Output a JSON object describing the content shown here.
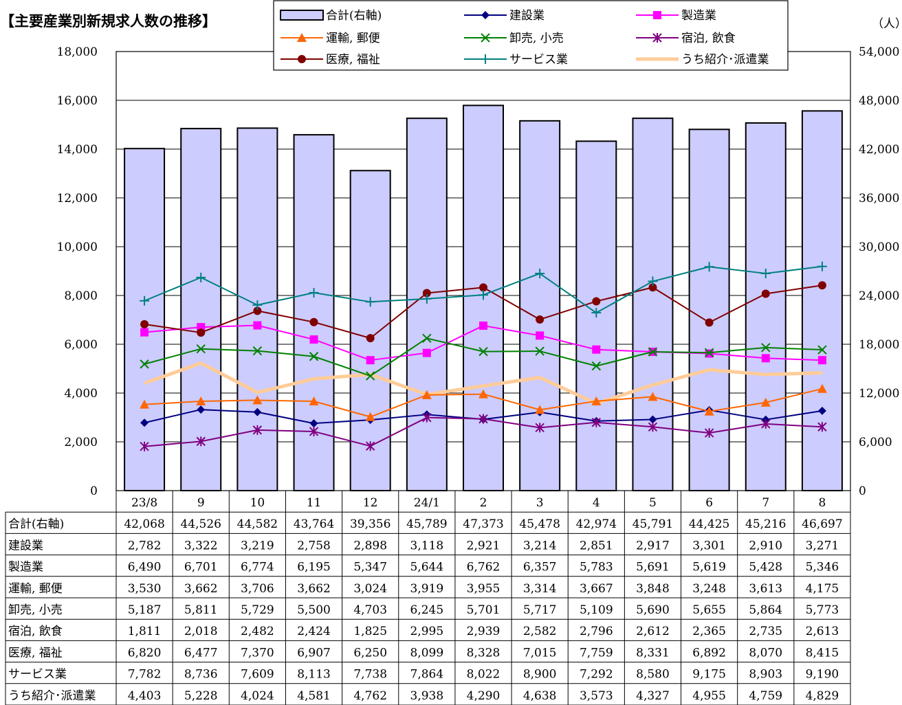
{
  "chart_data": {
    "type": "bar",
    "title": "【主要産業別新規求人数の推移】",
    "unit": "（人）",
    "categories": [
      "23/8",
      "9",
      "10",
      "11",
      "12",
      "24/1",
      "2",
      "3",
      "4",
      "5",
      "6",
      "7",
      "8"
    ],
    "left_axis": {
      "ylim": [
        0,
        18000
      ],
      "ticks": [
        "0",
        "2,000",
        "4,000",
        "6,000",
        "8,000",
        "10,000",
        "12,000",
        "14,000",
        "16,000",
        "18,000"
      ]
    },
    "right_axis": {
      "ylim": [
        0,
        54000
      ],
      "ticks": [
        "0",
        "6,000",
        "12,000",
        "18,000",
        "24,000",
        "30,000",
        "36,000",
        "42,000",
        "48,000",
        "54,000"
      ]
    },
    "bar_series": {
      "name": "合計(右軸)",
      "axis": "right",
      "color": "#ccccff",
      "values": [
        42068,
        44526,
        44582,
        43764,
        39356,
        45789,
        47373,
        45478,
        42974,
        45791,
        44425,
        45216,
        46697
      ],
      "labels": [
        "42,068",
        "44,526",
        "44,582",
        "43,764",
        "39,356",
        "45,789",
        "47,373",
        "45,478",
        "42,974",
        "45,791",
        "44,425",
        "45,216",
        "46,697"
      ]
    },
    "series": [
      {
        "name": "建設業",
        "color": "#000080",
        "marker": "diamond",
        "values": [
          2782,
          3322,
          3219,
          2758,
          2898,
          3118,
          2921,
          3214,
          2851,
          2917,
          3301,
          2910,
          3271
        ],
        "labels": [
          "2,782",
          "3,322",
          "3,219",
          "2,758",
          "2,898",
          "3,118",
          "2,921",
          "3,214",
          "2,851",
          "2,917",
          "3,301",
          "2,910",
          "3,271"
        ]
      },
      {
        "name": "製造業",
        "color": "#ff00ff",
        "marker": "square",
        "values": [
          6490,
          6701,
          6774,
          6195,
          5347,
          5644,
          6762,
          6357,
          5783,
          5691,
          5619,
          5428,
          5346
        ],
        "labels": [
          "6,490",
          "6,701",
          "6,774",
          "6,195",
          "5,347",
          "5,644",
          "6,762",
          "6,357",
          "5,783",
          "5,691",
          "5,619",
          "5,428",
          "5,346"
        ]
      },
      {
        "name": "運輸, 郵便",
        "color": "#ff6600",
        "marker": "triangle",
        "values": [
          3530,
          3662,
          3706,
          3662,
          3024,
          3919,
          3955,
          3314,
          3667,
          3848,
          3248,
          3613,
          4175
        ],
        "labels": [
          "3,530",
          "3,662",
          "3,706",
          "3,662",
          "3,024",
          "3,919",
          "3,955",
          "3,314",
          "3,667",
          "3,848",
          "3,248",
          "3,613",
          "4,175"
        ]
      },
      {
        "name": "卸売, 小売",
        "color": "#008000",
        "marker": "x",
        "values": [
          5187,
          5811,
          5729,
          5500,
          4703,
          6245,
          5701,
          5717,
          5109,
          5690,
          5655,
          5864,
          5773
        ],
        "labels": [
          "5,187",
          "5,811",
          "5,729",
          "5,500",
          "4,703",
          "6,245",
          "5,701",
          "5,717",
          "5,109",
          "5,690",
          "5,655",
          "5,864",
          "5,773"
        ]
      },
      {
        "name": "宿泊, 飲食",
        "color": "#800080",
        "marker": "star",
        "values": [
          1811,
          2018,
          2482,
          2424,
          1825,
          2995,
          2939,
          2582,
          2796,
          2612,
          2365,
          2735,
          2613
        ],
        "labels": [
          "1,811",
          "2,018",
          "2,482",
          "2,424",
          "1,825",
          "2,995",
          "2,939",
          "2,582",
          "2,796",
          "2,612",
          "2,365",
          "2,735",
          "2,613"
        ]
      },
      {
        "name": "医療, 福祉",
        "color": "#800000",
        "marker": "circle",
        "values": [
          6820,
          6477,
          7370,
          6907,
          6250,
          8099,
          8328,
          7015,
          7759,
          8331,
          6892,
          8070,
          8415
        ],
        "labels": [
          "6,820",
          "6,477",
          "7,370",
          "6,907",
          "6,250",
          "8,099",
          "8,328",
          "7,015",
          "7,759",
          "8,331",
          "6,892",
          "8,070",
          "8,415"
        ]
      },
      {
        "name": "サービス業",
        "color": "#008080",
        "marker": "plus",
        "values": [
          7782,
          8736,
          7609,
          8113,
          7738,
          7864,
          8022,
          8900,
          7292,
          8580,
          9175,
          8903,
          9190
        ],
        "labels": [
          "7,782",
          "8,736",
          "7,609",
          "8,113",
          "7,738",
          "7,864",
          "8,022",
          "8,900",
          "7,292",
          "8,580",
          "9,175",
          "8,903",
          "9,190"
        ]
      },
      {
        "name": "うち紹介･派遣業",
        "color": "#ffcc99",
        "marker": "none",
        "values": [
          4403,
          5228,
          4024,
          4581,
          4762,
          3938,
          4290,
          4638,
          3573,
          4327,
          4955,
          4759,
          4829
        ],
        "labels": [
          "4,403",
          "5,228",
          "4,024",
          "4,581",
          "4,762",
          "3,938",
          "4,290",
          "4,638",
          "3,573",
          "4,327",
          "4,955",
          "4,759",
          "4,829"
        ]
      }
    ],
    "legend_position": "top",
    "grid": true
  }
}
